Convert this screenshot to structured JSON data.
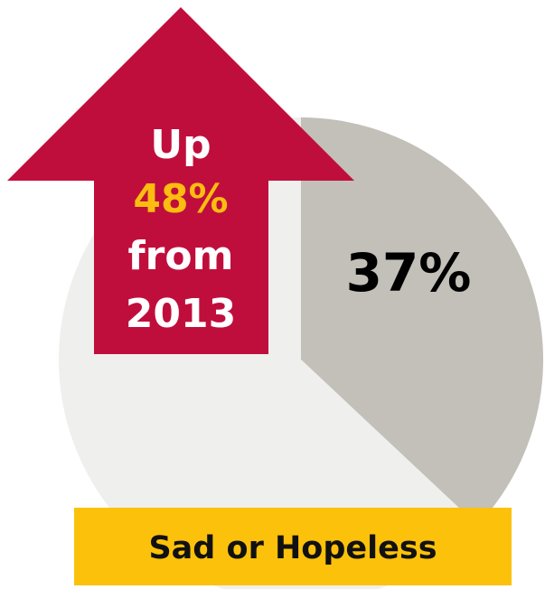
{
  "chart_data": {
    "type": "pie",
    "slices": [
      {
        "label": "Sad or Hopeless",
        "value": 37,
        "display": "37%",
        "color": "#c2c0b9"
      },
      {
        "label": "",
        "value": 63,
        "display": "",
        "color": "#efefed"
      }
    ],
    "annotation": {
      "line1": "Up",
      "line2": "48%",
      "line3": "from",
      "line4": "2013",
      "arrow_color": "#c00e3c",
      "highlight_color": "#fbbd10",
      "text_color": "#ffffff"
    },
    "caption": {
      "text": "Sad or Hopeless",
      "background": "#fcc10a",
      "text_color": "#111111"
    },
    "label_color": "#000000"
  }
}
